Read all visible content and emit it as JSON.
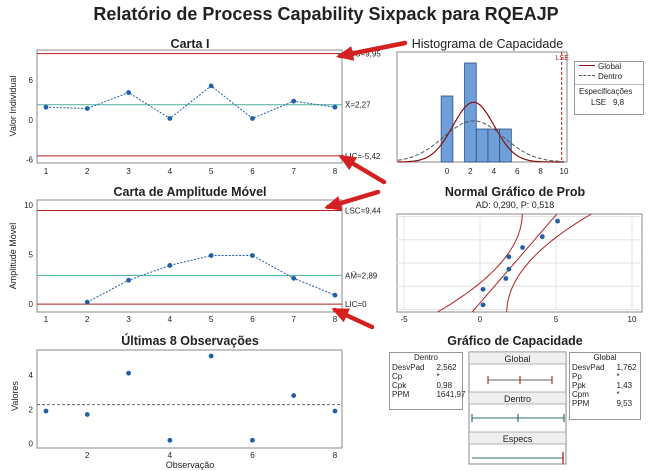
{
  "title": "Relatório de Process Capability Sixpack para RQEAJP",
  "colors": {
    "data": "#1f5fa8",
    "limit": "#b22222",
    "center": "#4caf9a",
    "arrow": "#d42020",
    "hist": "#6f9fd8"
  },
  "charts": {
    "ichart": {
      "title": "Carta I",
      "ylabel": "Valor Individual",
      "x": [
        1,
        2,
        3,
        4,
        5,
        6,
        7,
        8
      ],
      "values": [
        1.9,
        1.7,
        4.1,
        0.2,
        5.1,
        0.2,
        2.8,
        1.9
      ],
      "ylim": [
        -6.5,
        10.5
      ],
      "yticks": [
        "-6",
        "0",
        "6"
      ],
      "ucl_label": "LSC=9,95",
      "mean_label": "X̄=2,27",
      "lcl_label": "LIC=-5,42",
      "ucl": 9.95,
      "mean": 2.27,
      "lcl": -5.42
    },
    "mrchart": {
      "title": "Carta de Amplitude Móvel",
      "ylabel": "Amplitude Móvel",
      "x": [
        2,
        3,
        4,
        5,
        6,
        7,
        8
      ],
      "values": [
        0.2,
        2.4,
        3.9,
        4.9,
        4.9,
        2.6,
        0.9
      ],
      "ylim": [
        -0.8,
        10.5
      ],
      "yticks": [
        "0",
        "5",
        "10"
      ],
      "ucl_label": "LSC=9,44",
      "mean_label": "AM̄=2,89",
      "lcl_label": "LIC=0",
      "ucl": 9.44,
      "mean": 2.89,
      "lcl": 0
    },
    "last8": {
      "title": "Últimas 8 Observações",
      "ylabel": "Valores",
      "xlabel": "Observação",
      "x": [
        1,
        2,
        3,
        4,
        5,
        6,
        7,
        8
      ],
      "values": [
        1.9,
        1.7,
        4.1,
        0.2,
        5.1,
        0.2,
        2.8,
        1.9
      ],
      "mean": 2.27,
      "yticks": [
        "0",
        "2",
        "4"
      ],
      "xticks": [
        "2",
        "4",
        "6",
        "8"
      ]
    },
    "histogram": {
      "title": "Histograma de Capacidade",
      "lse_label": "LSE",
      "xticks": [
        "0",
        "2",
        "4",
        "6",
        "8",
        "10"
      ],
      "bins": [
        {
          "x0": -0.5,
          "x1": 0.5,
          "count": 2
        },
        {
          "x0": 0.5,
          "x1": 1.5,
          "count": 0
        },
        {
          "x0": 1.5,
          "x1": 2.5,
          "count": 3
        },
        {
          "x0": 2.5,
          "x1": 3.5,
          "count": 1
        },
        {
          "x0": 3.5,
          "x1": 4.5,
          "count": 1
        },
        {
          "x0": 4.5,
          "x1": 5.5,
          "count": 1
        }
      ],
      "usl": 9.8,
      "legend": {
        "global": "Global",
        "within": "Dentro",
        "spec_title": "Especificações",
        "lse_row": "LSE",
        "lse_value": "9,8"
      }
    },
    "probplot": {
      "title": "Normal Gráfico de Prob",
      "subtitle": "AD: 0,290, P: 0,518",
      "xticks": [
        "-5",
        "0",
        "5",
        "10"
      ],
      "values": [
        0.2,
        0.2,
        1.7,
        1.9,
        1.9,
        2.8,
        4.1,
        5.1
      ]
    },
    "capplot": {
      "title": "Gráfico de Capacidade",
      "rows": [
        "Global",
        "Dentro",
        "Especs"
      ]
    }
  },
  "within_stats": {
    "title": "Dentro",
    "rows": [
      {
        "label": "DesvPad",
        "value": "2,562"
      },
      {
        "label": "Cp",
        "value": "*"
      },
      {
        "label": "Cpk",
        "value": "0,98"
      },
      {
        "label": "PPM",
        "value": "1641,97"
      }
    ]
  },
  "overall_stats": {
    "title": "Global",
    "rows": [
      {
        "label": "DesvPad",
        "value": "1,762"
      },
      {
        "label": "Pp",
        "value": "*"
      },
      {
        "label": "Ppk",
        "value": "1,43"
      },
      {
        "label": "Cpm",
        "value": "*"
      },
      {
        "label": "PPM",
        "value": "9,53"
      }
    ]
  }
}
